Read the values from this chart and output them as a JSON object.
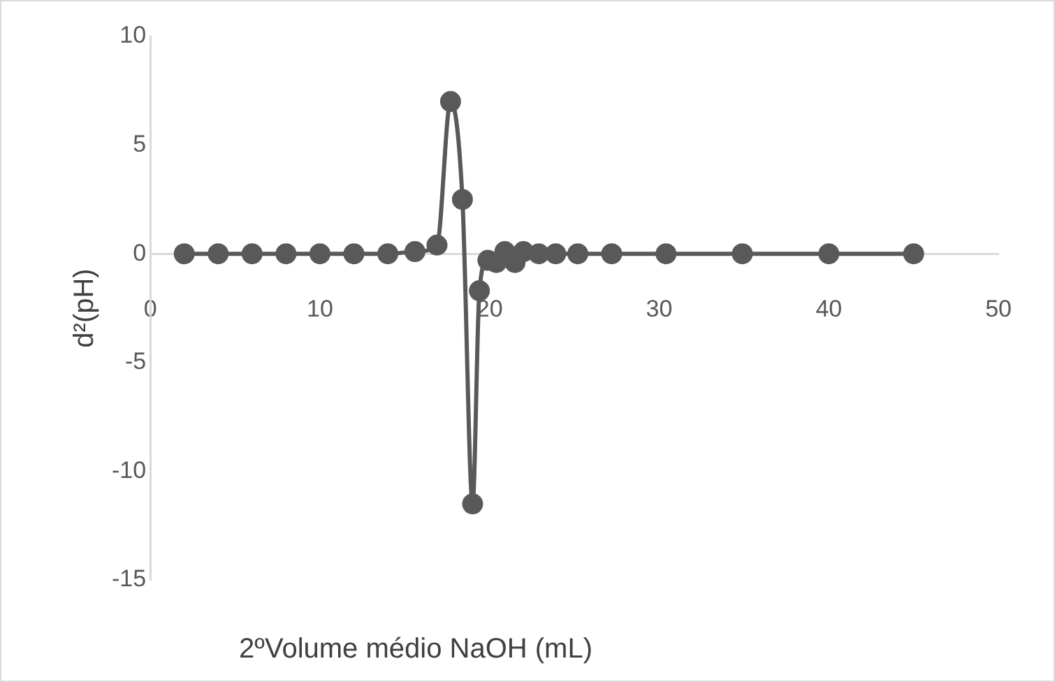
{
  "chart_data": {
    "type": "line",
    "xlabel": "2ºVolume médio NaOH (mL)",
    "ylabel": "d²(pH)",
    "x": [
      2,
      4,
      6,
      8,
      10,
      12,
      14,
      15.6,
      16.9,
      17.7,
      18.4,
      19.0,
      19.4,
      19.9,
      20.4,
      20.9,
      21.5,
      22.0,
      22.9,
      23.9,
      25.2,
      27.2,
      30.4,
      34.9,
      40,
      45
    ],
    "series": [
      {
        "color": "#595959",
        "values": [
          0,
          0,
          0,
          0,
          0,
          0,
          0,
          0.1,
          0.4,
          7,
          2.5,
          -11.5,
          -1.7,
          -0.3,
          -0.4,
          0.1,
          -0.4,
          0.1,
          0,
          0,
          0,
          0,
          0,
          0,
          0,
          0
        ]
      }
    ],
    "xlim": [
      0,
      50
    ],
    "xticks": [
      0,
      10,
      20,
      30,
      40,
      50
    ],
    "ylim": [
      -15,
      10
    ],
    "yticks": [
      -15,
      -10,
      -5,
      0,
      5,
      10
    ],
    "grid": false,
    "legend": false,
    "marker": "circle",
    "line_style": "solid"
  }
}
